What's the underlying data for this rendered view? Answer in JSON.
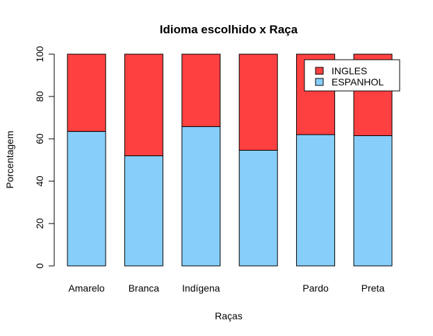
{
  "chart_data": {
    "type": "bar",
    "stacked": true,
    "title": "Idioma escolhido x Raça",
    "xlabel": "Raças",
    "ylabel": "Porcentagem",
    "categories": [
      "Amarelo",
      "Branca",
      "Indígena",
      "",
      "Pardo",
      "Preta"
    ],
    "series": [
      {
        "name": "ESPANHOL",
        "color": "#87cefa",
        "values": [
          63.5,
          52.0,
          65.8,
          54.6,
          62.0,
          61.5
        ]
      },
      {
        "name": "INGLES",
        "color": "#ff4040",
        "values": [
          36.5,
          48.0,
          34.2,
          45.4,
          38.0,
          38.5
        ]
      }
    ],
    "legend_order": [
      "INGLES",
      "ESPANHOL"
    ],
    "legend_position": "top-right",
    "ylim": [
      0,
      100
    ],
    "yticks": [
      "0",
      "20",
      "40",
      "60",
      "80",
      "100"
    ],
    "grid": false
  }
}
